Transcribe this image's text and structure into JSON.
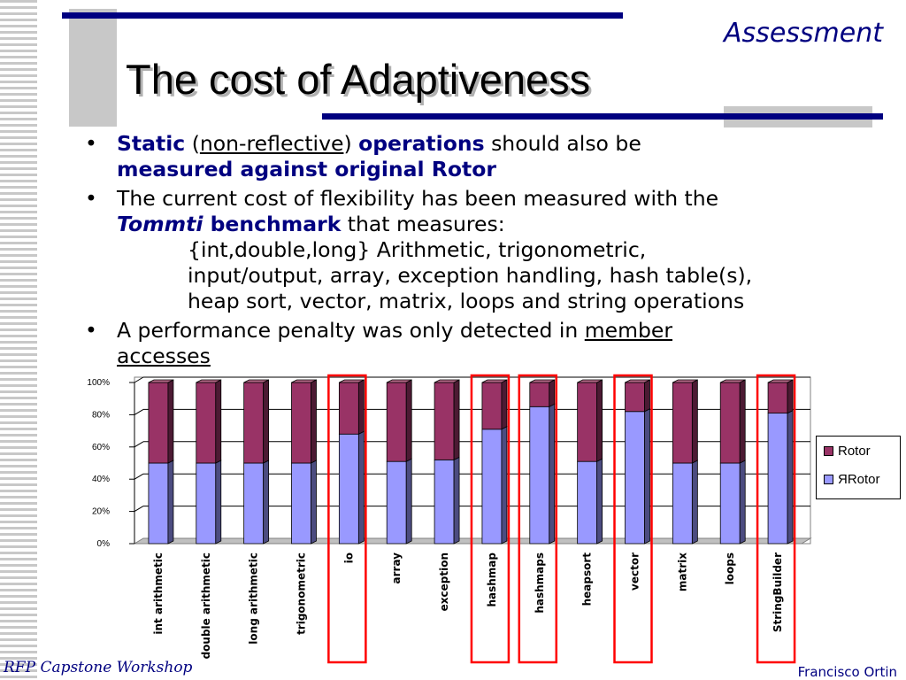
{
  "header": {
    "section": "Assessment",
    "title": "The cost of Adaptiveness"
  },
  "bullets": {
    "b1": {
      "static": "Static",
      "paren_open": " (",
      "non_reflective": "non-reflective",
      "paren_close": ") ",
      "operations": "operations",
      "should": " should also be",
      "measured": "measured against original Rotor"
    },
    "b2": {
      "line1": "The current cost of flexibility has been measured with the",
      "tommti": "Tommti",
      "benchmark": " benchmark",
      "measures": " that measures:",
      "detail1": "{int,double,long} Arithmetic, trigonometric,",
      "detail2": "input/output, array, exception handling, hash table(s),",
      "detail3": "heap sort, vector, matrix, loops and string operations"
    },
    "b3": {
      "text": "A performance penalty was only detected in ",
      "member": "member",
      "accesses": "accesses"
    },
    "bullet_glyph": "•"
  },
  "footer": {
    "left": "RFP Capstone Workshop",
    "right": "Francisco Ortin"
  },
  "colors": {
    "rotor": "#993366",
    "rrotor": "#9999ff",
    "navy": "#000080",
    "highlight": "#ff0000"
  },
  "chart_data": {
    "type": "bar",
    "stacked": "percent",
    "categories": [
      "int arithmetic",
      "double arithmetic",
      "long arithmetic",
      "trigonometric",
      "io",
      "array",
      "exception",
      "hashmap",
      "hashmaps",
      "heapsort",
      "vector",
      "matrix",
      "loops",
      "StringBuilder"
    ],
    "series": [
      {
        "name": "Rotor",
        "values": [
          50,
          50,
          50,
          50,
          32,
          49,
          48,
          29,
          15,
          49,
          18,
          50,
          50,
          19
        ]
      },
      {
        "name": "ЯRotor",
        "values": [
          50,
          50,
          50,
          50,
          68,
          51,
          52,
          71,
          85,
          51,
          82,
          50,
          50,
          81
        ]
      }
    ],
    "yticks": [
      "0%",
      "20%",
      "40%",
      "60%",
      "80%",
      "100%"
    ],
    "ylim": [
      0,
      100
    ],
    "highlighted": [
      "io",
      "hashmap",
      "hashmaps",
      "vector",
      "StringBuilder"
    ],
    "legend_position": "right",
    "grid": true
  }
}
